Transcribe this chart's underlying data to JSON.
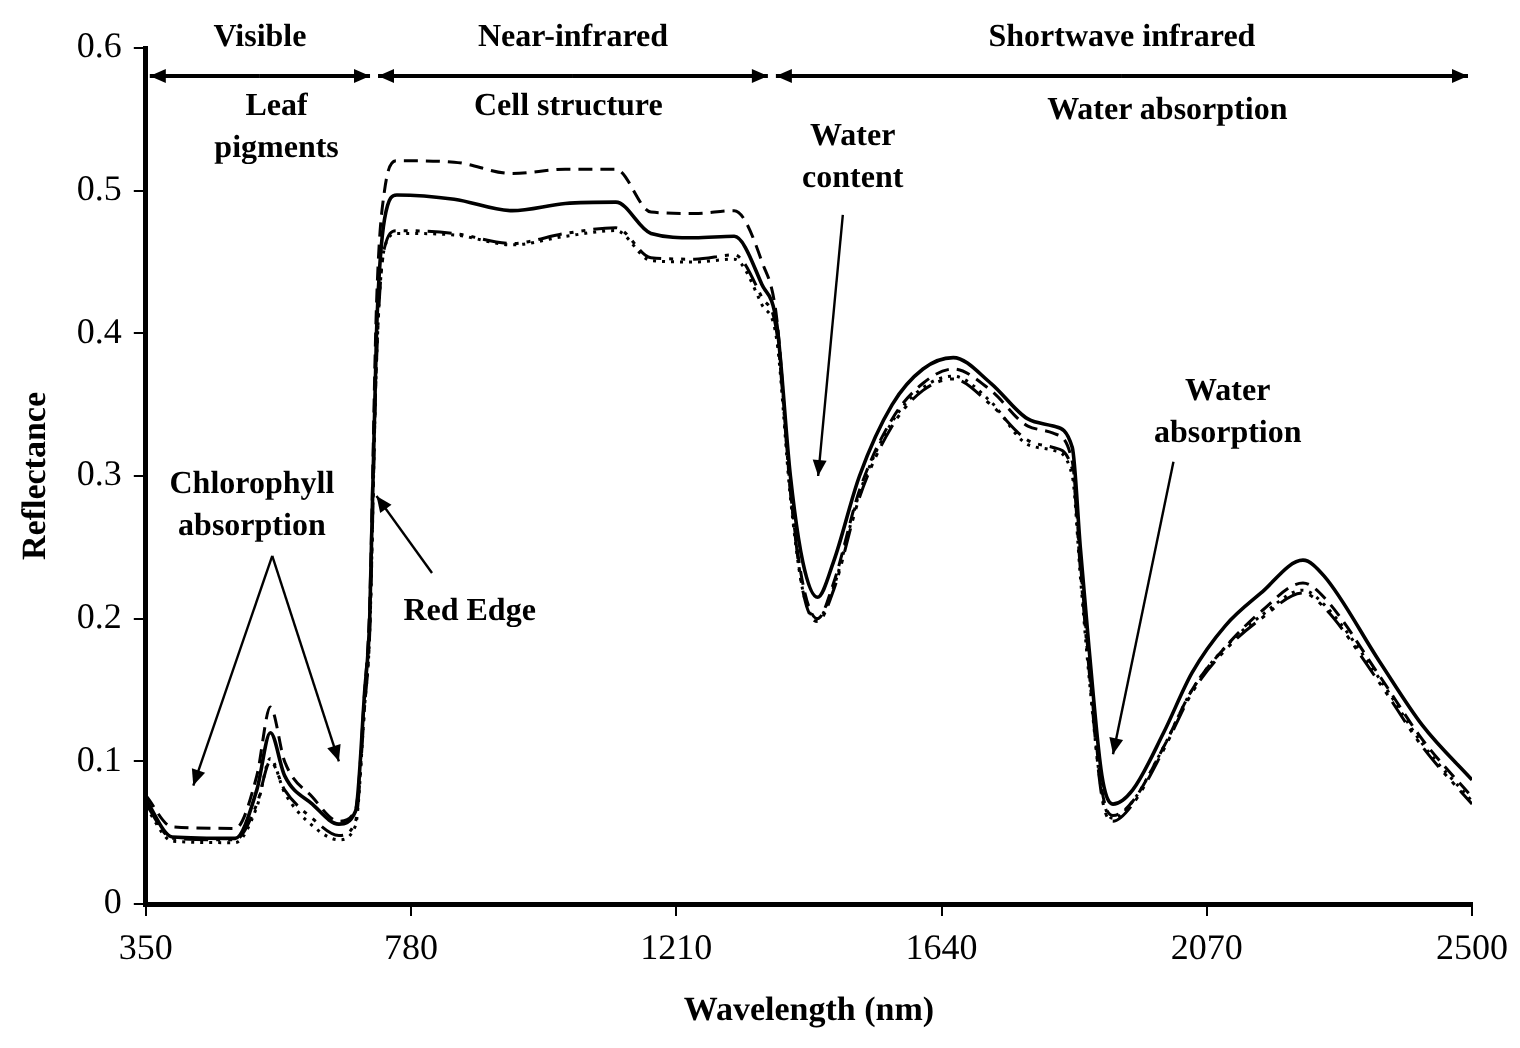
{
  "chart_data": {
    "type": "line",
    "xlabel": "Wavelength (nm)",
    "ylabel": "Reflectance",
    "x": [
      350,
      393,
      495,
      530,
      552,
      575,
      620,
      663,
      690,
      705,
      713,
      724,
      737,
      757,
      850,
      944,
      1030,
      1112,
      1169,
      1240,
      1304,
      1349,
      1373,
      1395,
      1415,
      1439,
      1465,
      1507,
      1560,
      1610,
      1659,
      1720,
      1780,
      1821,
      1852,
      1865,
      1879,
      1900,
      1918,
      1950,
      2000,
      2046,
      2100,
      2158,
      2226,
      2260,
      2350,
      2420,
      2500
    ],
    "series": [
      {
        "color": "#000000",
        "line_style": "solid",
        "values": [
          0.073,
          0.047,
          0.046,
          0.08,
          0.12,
          0.09,
          0.07,
          0.056,
          0.065,
          0.15,
          0.2,
          0.4,
          0.48,
          0.497,
          0.494,
          0.486,
          0.491,
          0.492,
          0.47,
          0.467,
          0.468,
          0.434,
          0.406,
          0.3,
          0.24,
          0.215,
          0.24,
          0.3,
          0.35,
          0.375,
          0.383,
          0.365,
          0.34,
          0.335,
          0.32,
          0.25,
          0.18,
          0.09,
          0.07,
          0.08,
          0.12,
          0.162,
          0.195,
          0.218,
          0.241,
          0.23,
          0.17,
          0.125,
          0.087
        ]
      },
      {
        "color": "#000000",
        "line_style": "dashed",
        "values": [
          0.076,
          0.054,
          0.053,
          0.09,
          0.138,
          0.1,
          0.075,
          0.058,
          0.066,
          0.15,
          0.21,
          0.42,
          0.5,
          0.521,
          0.52,
          0.512,
          0.515,
          0.515,
          0.485,
          0.484,
          0.486,
          0.45,
          0.41,
          0.29,
          0.225,
          0.2,
          0.225,
          0.29,
          0.34,
          0.365,
          0.375,
          0.36,
          0.335,
          0.33,
          0.31,
          0.24,
          0.17,
          0.08,
          0.062,
          0.072,
          0.11,
          0.15,
          0.18,
          0.205,
          0.225,
          0.215,
          0.16,
          0.115,
          0.075
        ]
      },
      {
        "color": "#000000",
        "line_style": "dashed",
        "values": [
          0.07,
          0.046,
          0.045,
          0.07,
          0.1,
          0.08,
          0.06,
          0.048,
          0.058,
          0.14,
          0.19,
          0.38,
          0.46,
          0.472,
          0.47,
          0.463,
          0.47,
          0.474,
          0.453,
          0.452,
          0.455,
          0.425,
          0.4,
          0.29,
          0.22,
          0.198,
          0.22,
          0.285,
          0.335,
          0.36,
          0.368,
          0.35,
          0.325,
          0.32,
          0.305,
          0.235,
          0.165,
          0.075,
          0.058,
          0.07,
          0.108,
          0.148,
          0.178,
          0.2,
          0.218,
          0.208,
          0.155,
          0.11,
          0.07
        ]
      },
      {
        "color": "#000000",
        "line_style": "dotted",
        "values": [
          0.068,
          0.044,
          0.043,
          0.068,
          0.102,
          0.078,
          0.055,
          0.045,
          0.055,
          0.14,
          0.19,
          0.38,
          0.46,
          0.47,
          0.469,
          0.462,
          0.468,
          0.472,
          0.451,
          0.45,
          0.452,
          0.42,
          0.395,
          0.285,
          0.22,
          0.2,
          0.222,
          0.288,
          0.338,
          0.362,
          0.37,
          0.352,
          0.322,
          0.318,
          0.3,
          0.23,
          0.16,
          0.078,
          0.06,
          0.072,
          0.11,
          0.15,
          0.18,
          0.202,
          0.22,
          0.21,
          0.158,
          0.112,
          0.072
        ]
      }
    ],
    "xlim": [
      350,
      2500
    ],
    "xticks": [
      350,
      780,
      1210,
      1640,
      2070,
      2500
    ],
    "ylim": [
      0,
      0.6
    ],
    "yticks": [
      0,
      0.1,
      0.2,
      0.3,
      0.4,
      0.5,
      0.6
    ],
    "grid": false,
    "legend": false,
    "marker": "none",
    "annotations": [
      "Visible",
      "Near-infrared",
      "Shortwave infrared",
      "Leaf pigments",
      "Cell structure",
      "Water absorption",
      "Chlorophyll absorption",
      {
        "text": "Red Edge",
        "x": 724,
        "y": 0.286
      },
      "Water content",
      "Water absorption"
    ]
  }
}
